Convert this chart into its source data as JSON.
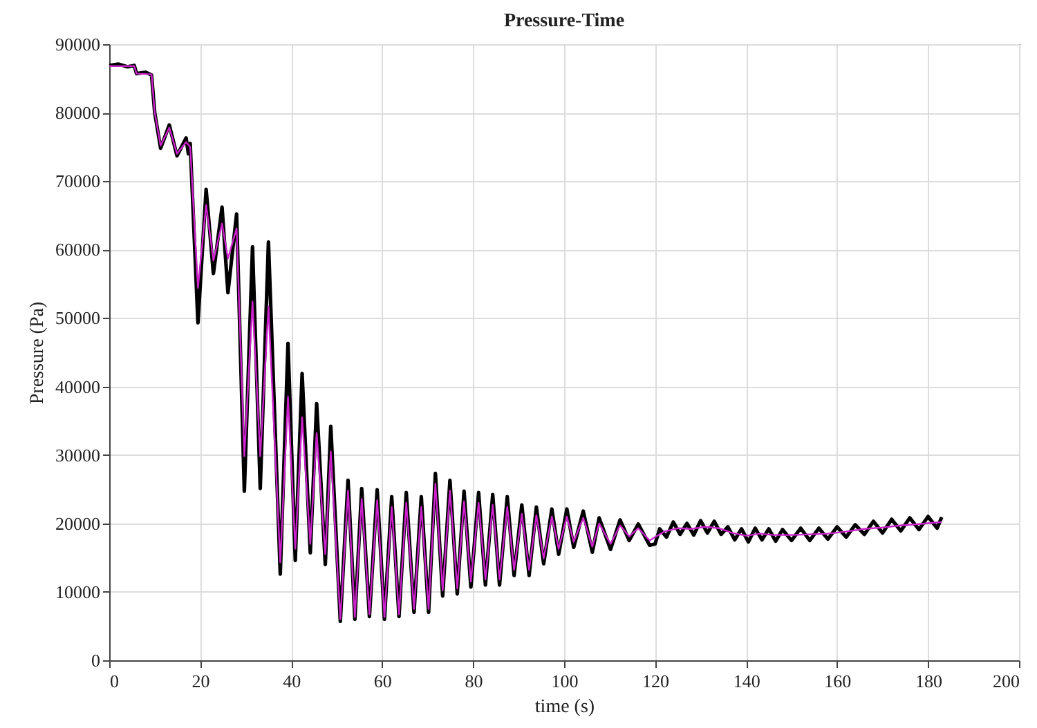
{
  "chart_data": {
    "type": "line",
    "title": "Pressure-Time",
    "xlabel": "time (s)",
    "ylabel": "Pressure (Pa)",
    "xlim": [
      0,
      200
    ],
    "xticks": [
      0,
      20,
      40,
      60,
      80,
      100,
      120,
      140,
      160,
      180,
      200
    ],
    "ylim": [
      0,
      90000
    ],
    "yticks": [
      0,
      10000,
      20000,
      30000,
      40000,
      50000,
      60000,
      70000,
      80000,
      90000
    ],
    "grid": true,
    "line_style": "solid",
    "series": [
      {
        "color": "#000000",
        "x": [
          0,
          2,
          4,
          5.5,
          6,
          8,
          9.3,
          10,
          11.3,
          13.2,
          14.9,
          16.9,
          17.4,
          17.8,
          19.5,
          21.3,
          22.9,
          24.8,
          26.1,
          28.0,
          29.7,
          31.5,
          33.2,
          35.0,
          37.6,
          39.3,
          40.9,
          42.4,
          44.2,
          45.6,
          47.5,
          48.7,
          50.8,
          52.5,
          54.0,
          55.5,
          57.2,
          58.9,
          60.5,
          62.1,
          63.7,
          65.3,
          67.0,
          68.6,
          70.2,
          71.7,
          73.3,
          74.9,
          76.5,
          78.0,
          79.5,
          81.2,
          82.7,
          84.3,
          85.8,
          87.5,
          89.0,
          90.7,
          92.3,
          93.9,
          95.5,
          97.3,
          98.8,
          100.6,
          102.1,
          104.2,
          106.2,
          107.7,
          110.2,
          112.3,
          114.3,
          116.3,
          118.8,
          120,
          121,
          122.5,
          124,
          125.5,
          127,
          128.5,
          130,
          131.5,
          133,
          134.5,
          136,
          137.5,
          139,
          140.5,
          142,
          143.5,
          145,
          146.5,
          148,
          150,
          152,
          154,
          156,
          158,
          160,
          162,
          164,
          166,
          168,
          170,
          172,
          174,
          176,
          178,
          180,
          182,
          183
        ],
        "values": [
          86900,
          87100,
          86700,
          86900,
          85700,
          85900,
          85500,
          80000,
          74800,
          78200,
          73700,
          76300,
          74000,
          75500,
          49300,
          68800,
          56500,
          66200,
          53700,
          65200,
          24700,
          60400,
          25100,
          61100,
          12600,
          46300,
          14600,
          41900,
          15700,
          37500,
          14000,
          34200,
          5700,
          26300,
          6000,
          25100,
          6400,
          24900,
          6000,
          23900,
          6400,
          24500,
          7000,
          23900,
          7000,
          27300,
          9400,
          26300,
          9700,
          24700,
          10700,
          24500,
          11000,
          24200,
          11000,
          23900,
          12400,
          22700,
          12400,
          22400,
          14100,
          22100,
          15500,
          22100,
          16500,
          21800,
          15800,
          20800,
          16200,
          20500,
          17500,
          19900,
          16800,
          17000,
          19200,
          18000,
          20200,
          18400,
          20000,
          18300,
          20400,
          18600,
          20300,
          18400,
          19500,
          17600,
          19200,
          17300,
          19300,
          17600,
          19200,
          17400,
          19100,
          17500,
          19300,
          17500,
          19300,
          17700,
          19500,
          18000,
          19800,
          18400,
          20300,
          18600,
          20600,
          18900,
          20800,
          19100,
          21000,
          19300,
          20900
        ]
      },
      {
        "color": "#cc22cc",
        "x": [
          0,
          5.5,
          6,
          9.3,
          10,
          11.3,
          13.2,
          14.9,
          16.9,
          17.8,
          19.5,
          21.3,
          22.9,
          24.8,
          26.1,
          28.0,
          29.7,
          31.5,
          33.2,
          35.0,
          37.6,
          39.3,
          40.9,
          42.4,
          44.2,
          45.6,
          47.5,
          48.7,
          50.8,
          52.5,
          54.0,
          55.5,
          57.2,
          58.9,
          60.5,
          62.1,
          63.7,
          65.3,
          67.0,
          68.6,
          70.2,
          71.7,
          73.3,
          74.9,
          76.5,
          78.0,
          79.5,
          81.2,
          82.7,
          84.3,
          85.8,
          87.5,
          89.0,
          90.7,
          92.3,
          93.9,
          95.5,
          97.3,
          98.8,
          100.6,
          102.1,
          104.2,
          106.2,
          107.7,
          110.2,
          112.3,
          114.3,
          116.3,
          118.8,
          120,
          122,
          125,
          128,
          131,
          134,
          137,
          140,
          143,
          146,
          150,
          154,
          158,
          162,
          166,
          170,
          174,
          178,
          183
        ],
        "values": [
          86800,
          86800,
          85700,
          85600,
          80000,
          75200,
          77800,
          74000,
          75700,
          75000,
          54400,
          66500,
          58400,
          63800,
          58700,
          63100,
          29800,
          52400,
          29800,
          51700,
          14300,
          38500,
          16300,
          35500,
          17000,
          33200,
          15500,
          30500,
          6000,
          24800,
          6300,
          23600,
          6700,
          23400,
          6300,
          22400,
          6700,
          23000,
          7500,
          22400,
          7500,
          25800,
          10200,
          24800,
          10500,
          23200,
          11500,
          23000,
          11800,
          22700,
          11800,
          22400,
          13200,
          21400,
          13200,
          21200,
          14900,
          21000,
          16300,
          21000,
          17300,
          20800,
          16600,
          20000,
          17000,
          19700,
          18100,
          19300,
          17500,
          18000,
          18800,
          19300,
          19200,
          19500,
          19300,
          18600,
          18200,
          18500,
          18300,
          18300,
          18400,
          18500,
          18800,
          19200,
          19400,
          19700,
          19900,
          20200
        ]
      }
    ]
  }
}
